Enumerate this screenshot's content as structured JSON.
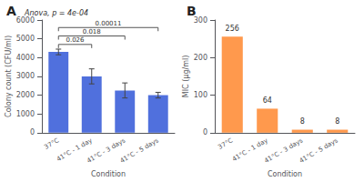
{
  "chart_data": [
    {
      "type": "bar",
      "title": "A",
      "annotations": [
        "Anova, p = 4e-04"
      ],
      "xlabel": "Condition",
      "ylabel": "Colony count (CFU/ml)",
      "categories": [
        "37°C",
        "41°C - 1 day",
        "41°C - 3 days",
        "41°C - 5 days"
      ],
      "values": [
        4300,
        3000,
        2250,
        2000
      ],
      "errors": [
        150,
        400,
        400,
        150
      ],
      "significance": [
        {
          "from": "37°C",
          "to": "41°C - 1 day",
          "y": 4700,
          "label": "0.026"
        },
        {
          "from": "37°C",
          "to": "41°C - 3 days",
          "y": 5150,
          "label": "0.018"
        },
        {
          "from": "37°C",
          "to": "41°C - 5 days",
          "y": 5600,
          "label": "0.00011"
        }
      ],
      "ylim": [
        0,
        6000
      ],
      "yticks": [
        0,
        1000,
        2000,
        3000,
        4000,
        5000,
        6000
      ],
      "grid": false
    },
    {
      "type": "bar",
      "title": "B",
      "xlabel": "Condition",
      "ylabel": "MIC (μg/ml)",
      "categories": [
        "37°C",
        "41°C - 1 day",
        "41°C - 3 days",
        "41°C - 5 days"
      ],
      "values": [
        256,
        64,
        8,
        8
      ],
      "data_labels": true,
      "ylim": [
        0,
        300
      ],
      "yticks": [
        0,
        100,
        200,
        300
      ],
      "grid": false
    }
  ]
}
